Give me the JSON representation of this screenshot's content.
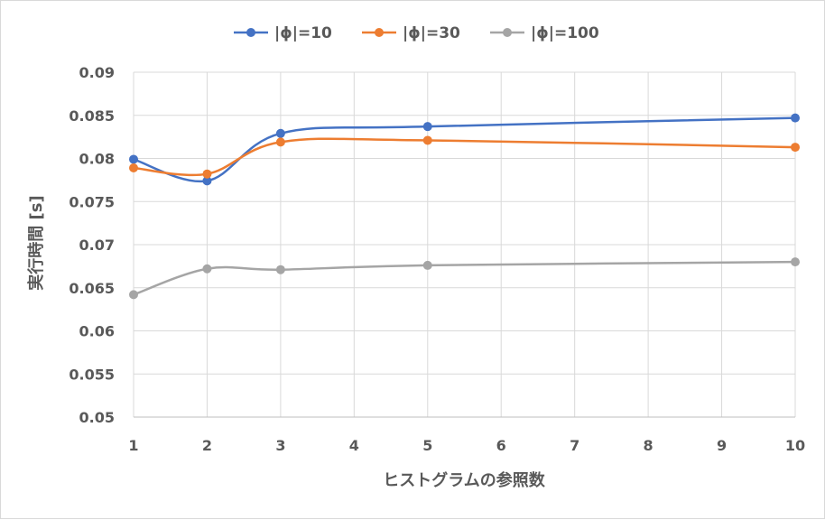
{
  "chart_data": {
    "type": "line",
    "title": "",
    "x": [
      "1",
      "2",
      "3",
      "4",
      "5",
      "6",
      "7",
      "8",
      "9",
      "10"
    ],
    "series": [
      {
        "name": "|ϕ|=10",
        "color": "#4472C4",
        "points": [
          {
            "x": 1,
            "y": 0.0799
          },
          {
            "x": 2,
            "y": 0.0774
          },
          {
            "x": 3,
            "y": 0.0829
          },
          {
            "x": 5,
            "y": 0.0837
          },
          {
            "x": 10,
            "y": 0.0847
          }
        ]
      },
      {
        "name": "|ϕ|=30",
        "color": "#ED7D31",
        "points": [
          {
            "x": 1,
            "y": 0.0789
          },
          {
            "x": 2,
            "y": 0.0782
          },
          {
            "x": 3,
            "y": 0.0819
          },
          {
            "x": 5,
            "y": 0.0821
          },
          {
            "x": 10,
            "y": 0.0813
          }
        ]
      },
      {
        "name": "|ϕ|=100",
        "color": "#A5A5A5",
        "points": [
          {
            "x": 1,
            "y": 0.0642
          },
          {
            "x": 2,
            "y": 0.0672
          },
          {
            "x": 3,
            "y": 0.0671
          },
          {
            "x": 5,
            "y": 0.0676
          },
          {
            "x": 10,
            "y": 0.068
          }
        ]
      }
    ],
    "xlabel": "ヒストグラムの参照数",
    "ylabel": "実行時間 [s]",
    "ylim": [
      0.05,
      0.09
    ],
    "yticks": [
      "0.05",
      "0.055",
      "0.06",
      "0.065",
      "0.07",
      "0.075",
      "0.08",
      "0.085",
      "0.09"
    ],
    "xlim": [
      1,
      10
    ],
    "grid": true,
    "legend_position": "top-center"
  }
}
